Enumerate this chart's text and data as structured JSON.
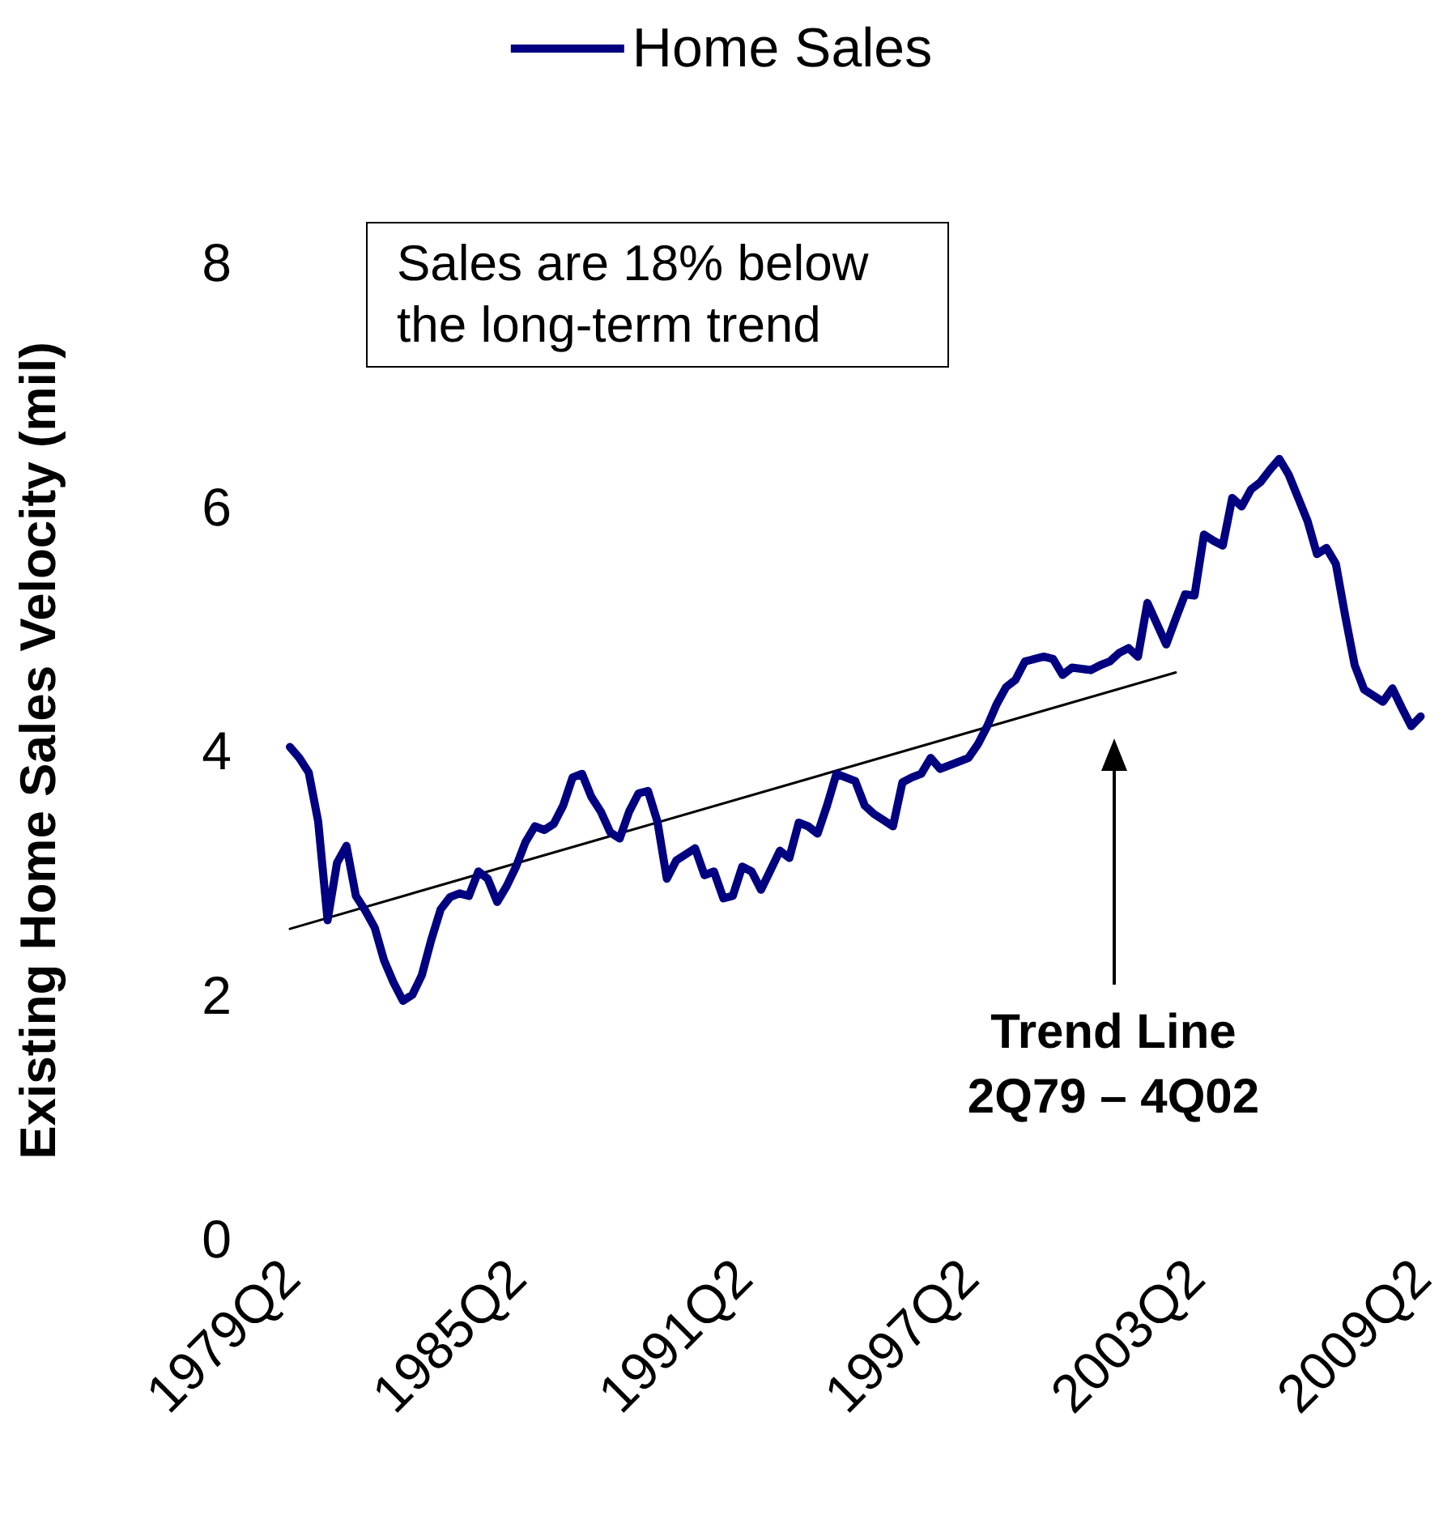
{
  "chart_data": {
    "type": "line",
    "ylabel": "Existing Home Sales Velocity (mil)",
    "categories": [
      "1979Q2",
      null,
      null,
      null,
      null,
      null,
      null,
      null,
      null,
      null,
      null,
      null,
      null,
      null,
      null,
      null,
      null,
      null,
      null,
      null,
      null,
      null,
      null,
      null,
      "1985Q2",
      null,
      null,
      null,
      null,
      null,
      null,
      null,
      null,
      null,
      null,
      null,
      null,
      null,
      null,
      null,
      null,
      null,
      null,
      null,
      null,
      null,
      null,
      null,
      "1991Q2",
      null,
      null,
      null,
      null,
      null,
      null,
      null,
      null,
      null,
      null,
      null,
      null,
      null,
      null,
      null,
      null,
      null,
      null,
      null,
      null,
      null,
      null,
      null,
      "1997Q2",
      null,
      null,
      null,
      null,
      null,
      null,
      null,
      null,
      null,
      null,
      null,
      null,
      null,
      null,
      null,
      null,
      null,
      null,
      null,
      null,
      null,
      null,
      null,
      "2003Q2",
      null,
      null,
      null,
      null,
      null,
      null,
      null,
      null,
      null,
      null,
      null,
      null,
      null,
      null,
      null,
      null,
      null,
      null,
      null,
      null,
      null,
      null,
      null,
      "2009Q2"
    ],
    "ylim": [
      0,
      8
    ],
    "yticks": [
      0,
      2,
      4,
      6,
      8
    ],
    "grid": false,
    "legend": "top",
    "marker": "none",
    "annotations": [
      "Sales are 18% below the long-term trend",
      "Trend Line\n2Q79 – 4Q02"
    ],
    "series": [
      {
        "name": "Home Sales",
        "color": "#000080",
        "values": [
          4.03,
          3.94,
          3.82,
          3.42,
          2.61,
          3.08,
          3.22,
          2.81,
          2.69,
          2.55,
          2.28,
          2.1,
          1.95,
          2.0,
          2.16,
          2.45,
          2.7,
          2.8,
          2.83,
          2.81,
          3.01,
          2.95,
          2.76,
          2.89,
          3.05,
          3.25,
          3.38,
          3.35,
          3.4,
          3.55,
          3.78,
          3.81,
          3.62,
          3.5,
          3.33,
          3.28,
          3.5,
          3.65,
          3.67,
          3.42,
          2.95,
          3.1,
          3.15,
          3.2,
          2.98,
          3.01,
          2.79,
          2.81,
          3.05,
          3.01,
          2.86,
          3.02,
          3.18,
          3.12,
          3.41,
          3.38,
          3.32,
          3.55,
          3.81,
          3.78,
          3.75,
          3.55,
          3.48,
          3.43,
          3.38,
          3.74,
          3.78,
          3.81,
          3.94,
          3.85,
          3.88,
          3.91,
          3.94,
          4.05,
          4.2,
          4.38,
          4.52,
          4.58,
          4.73,
          4.75,
          4.77,
          4.75,
          4.62,
          4.68,
          4.67,
          4.66,
          4.7,
          4.73,
          4.8,
          4.84,
          4.77,
          5.21,
          5.04,
          4.87,
          5.08,
          5.28,
          5.27,
          5.77,
          5.72,
          5.68,
          6.07,
          6.0,
          6.14,
          6.2,
          6.3,
          6.39,
          6.26,
          6.07,
          5.88,
          5.61,
          5.66,
          5.53,
          5.1,
          4.7,
          4.5,
          4.45,
          4.4,
          4.51,
          4.35,
          4.2,
          4.28
        ]
      },
      {
        "type": "line",
        "color": "#000000",
        "values": [
          2.54,
          null,
          null,
          null,
          null,
          null,
          null,
          null,
          null,
          null,
          null,
          null,
          null,
          null,
          null,
          null,
          null,
          null,
          null,
          null,
          null,
          null,
          null,
          null,
          null,
          null,
          null,
          null,
          null,
          null,
          null,
          null,
          null,
          null,
          null,
          null,
          null,
          null,
          null,
          null,
          null,
          null,
          null,
          null,
          null,
          null,
          null,
          null,
          null,
          null,
          null,
          null,
          null,
          null,
          null,
          null,
          null,
          null,
          null,
          null,
          null,
          null,
          null,
          null,
          null,
          null,
          null,
          null,
          null,
          null,
          null,
          null,
          null,
          null,
          null,
          null,
          null,
          null,
          null,
          null,
          null,
          null,
          null,
          null,
          null,
          null,
          null,
          null,
          null,
          null,
          null,
          null,
          null,
          null,
          4.64,
          null,
          null,
          null,
          null,
          null,
          null,
          null,
          null,
          null,
          null,
          null,
          null,
          null,
          null,
          null,
          null,
          null,
          null,
          null,
          null,
          null,
          null,
          null,
          null,
          null,
          null
        ]
      }
    ]
  }
}
